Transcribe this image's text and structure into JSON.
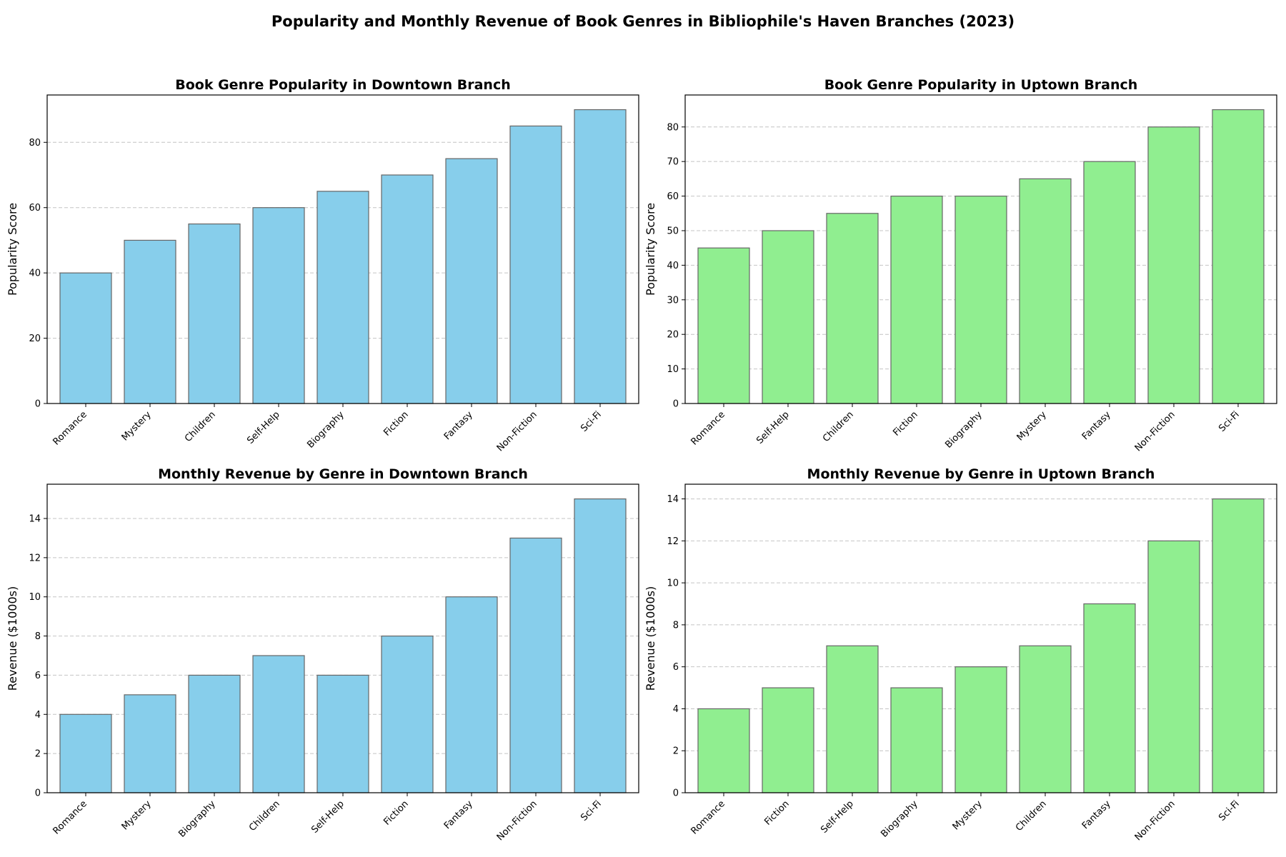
{
  "suptitle": "Popularity and Monthly Revenue of Book Genres in Bibliophile's Haven Branches (2023)",
  "chart_data": [
    {
      "type": "bar",
      "title": "Book Genre Popularity in Downtown Branch",
      "xlabel": "",
      "ylabel": "Popularity Score",
      "categories": [
        "Romance",
        "Mystery",
        "Children",
        "Self-Help",
        "Biography",
        "Fiction",
        "Fantasy",
        "Non-Fiction",
        "Sci-Fi"
      ],
      "values": [
        40,
        50,
        55,
        60,
        65,
        70,
        75,
        85,
        90
      ],
      "ylim": [
        0,
        94.5
      ],
      "yticks": [
        0,
        20,
        40,
        60,
        80
      ],
      "color": "#87CEEB",
      "grid": "y-dashed"
    },
    {
      "type": "bar",
      "title": "Book Genre Popularity in Uptown Branch",
      "xlabel": "",
      "ylabel": "Popularity Score",
      "categories": [
        "Romance",
        "Self-Help",
        "Children",
        "Fiction",
        "Biography",
        "Mystery",
        "Fantasy",
        "Non-Fiction",
        "Sci-Fi"
      ],
      "values": [
        45,
        50,
        55,
        60,
        60,
        65,
        70,
        80,
        85
      ],
      "ylim": [
        0,
        89.25
      ],
      "yticks": [
        0,
        10,
        20,
        30,
        40,
        50,
        60,
        70,
        80
      ],
      "color": "#90EE90",
      "grid": "y-dashed"
    },
    {
      "type": "bar",
      "title": "Monthly Revenue by Genre in Downtown Branch",
      "xlabel": "",
      "ylabel": "Revenue ($1000s)",
      "categories": [
        "Romance",
        "Mystery",
        "Biography",
        "Children",
        "Self-Help",
        "Fiction",
        "Fantasy",
        "Non-Fiction",
        "Sci-Fi"
      ],
      "values": [
        4,
        5,
        6,
        7,
        6,
        8,
        10,
        13,
        15
      ],
      "ylim": [
        0,
        15.75
      ],
      "yticks": [
        0,
        2,
        4,
        6,
        8,
        10,
        12,
        14
      ],
      "color": "#87CEEB",
      "grid": "y-dashed"
    },
    {
      "type": "bar",
      "title": "Monthly Revenue by Genre in Uptown Branch",
      "xlabel": "",
      "ylabel": "Revenue ($1000s)",
      "categories": [
        "Romance",
        "Fiction",
        "Self-Help",
        "Biography",
        "Mystery",
        "Children",
        "Fantasy",
        "Non-Fiction",
        "Sci-Fi"
      ],
      "values": [
        4,
        5,
        7,
        5,
        6,
        7,
        9,
        12,
        14
      ],
      "ylim": [
        0,
        14.7
      ],
      "yticks": [
        0,
        2,
        4,
        6,
        8,
        10,
        12,
        14
      ],
      "color": "#90EE90",
      "grid": "y-dashed"
    }
  ]
}
